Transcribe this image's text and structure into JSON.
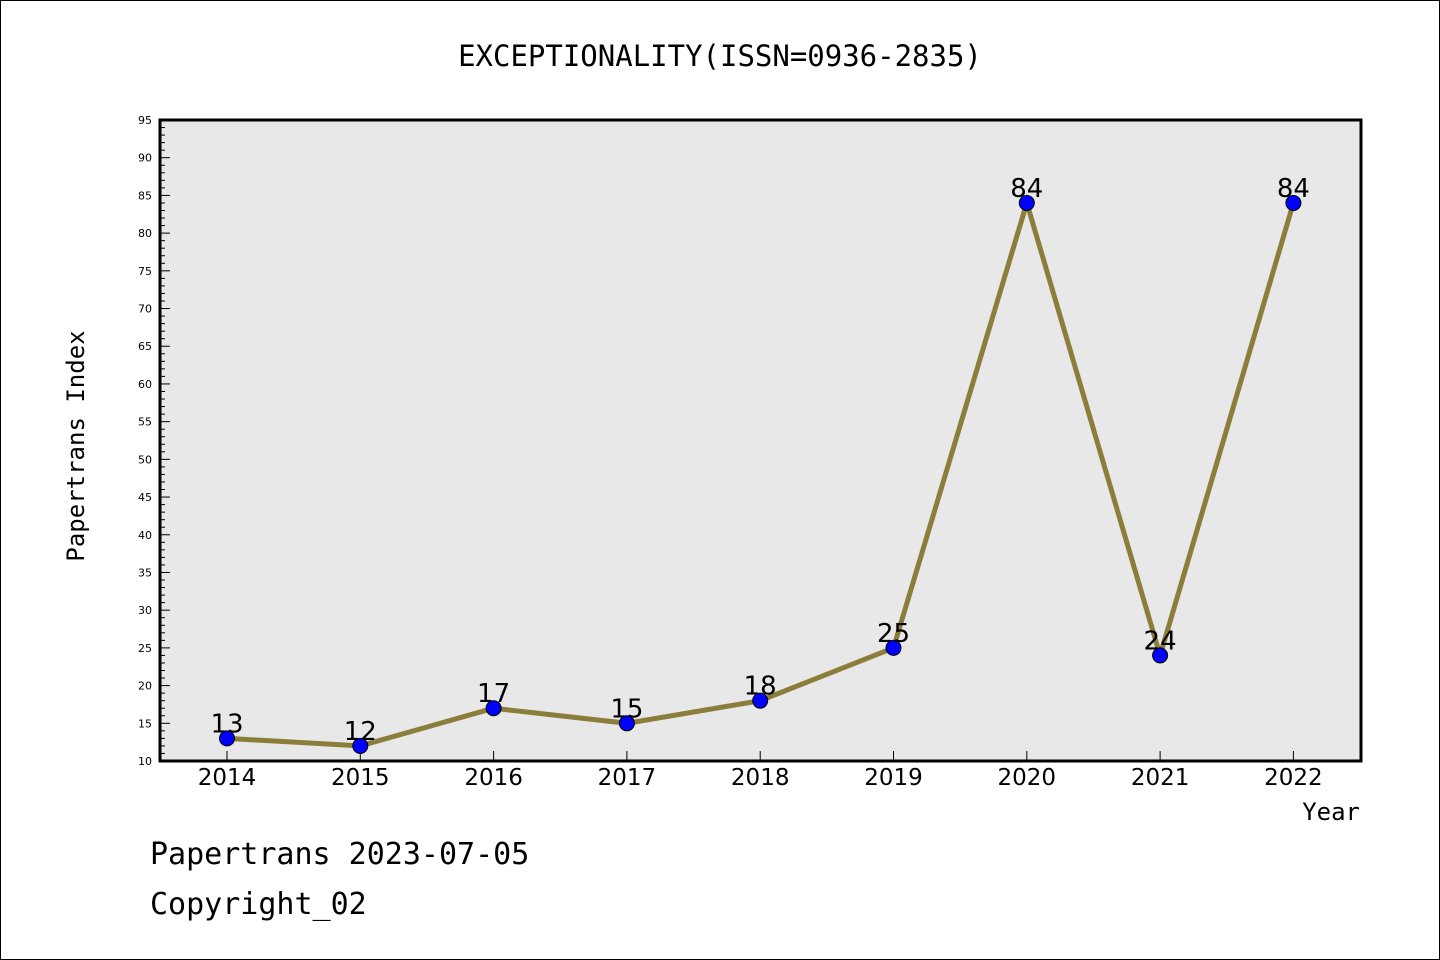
{
  "chart_data": {
    "type": "line",
    "title": "EXCEPTIONALITY(ISSN=0936-2835)",
    "xlabel": "Year",
    "ylabel": "Papertrans Index",
    "categories": [
      "2014",
      "2015",
      "2016",
      "2017",
      "2018",
      "2019",
      "2020",
      "2021",
      "2022"
    ],
    "series": [
      {
        "values": [
          13,
          12,
          17,
          15,
          18,
          25,
          84,
          24,
          84
        ]
      }
    ],
    "ylim": [
      10,
      95
    ],
    "y_ticks": [
      "10",
      "15",
      "20",
      "25",
      "30",
      "35",
      "40",
      "45",
      "50",
      "55",
      "60",
      "65",
      "70",
      "75",
      "80",
      "85",
      "90",
      "95"
    ],
    "grid": false,
    "line_color": "#8B7D3A",
    "marker_color": "#0000FF",
    "plot_background": "#E8E8E8"
  },
  "footer": {
    "line1": "Papertrans 2023-07-05",
    "line2": "Copyright_02"
  }
}
